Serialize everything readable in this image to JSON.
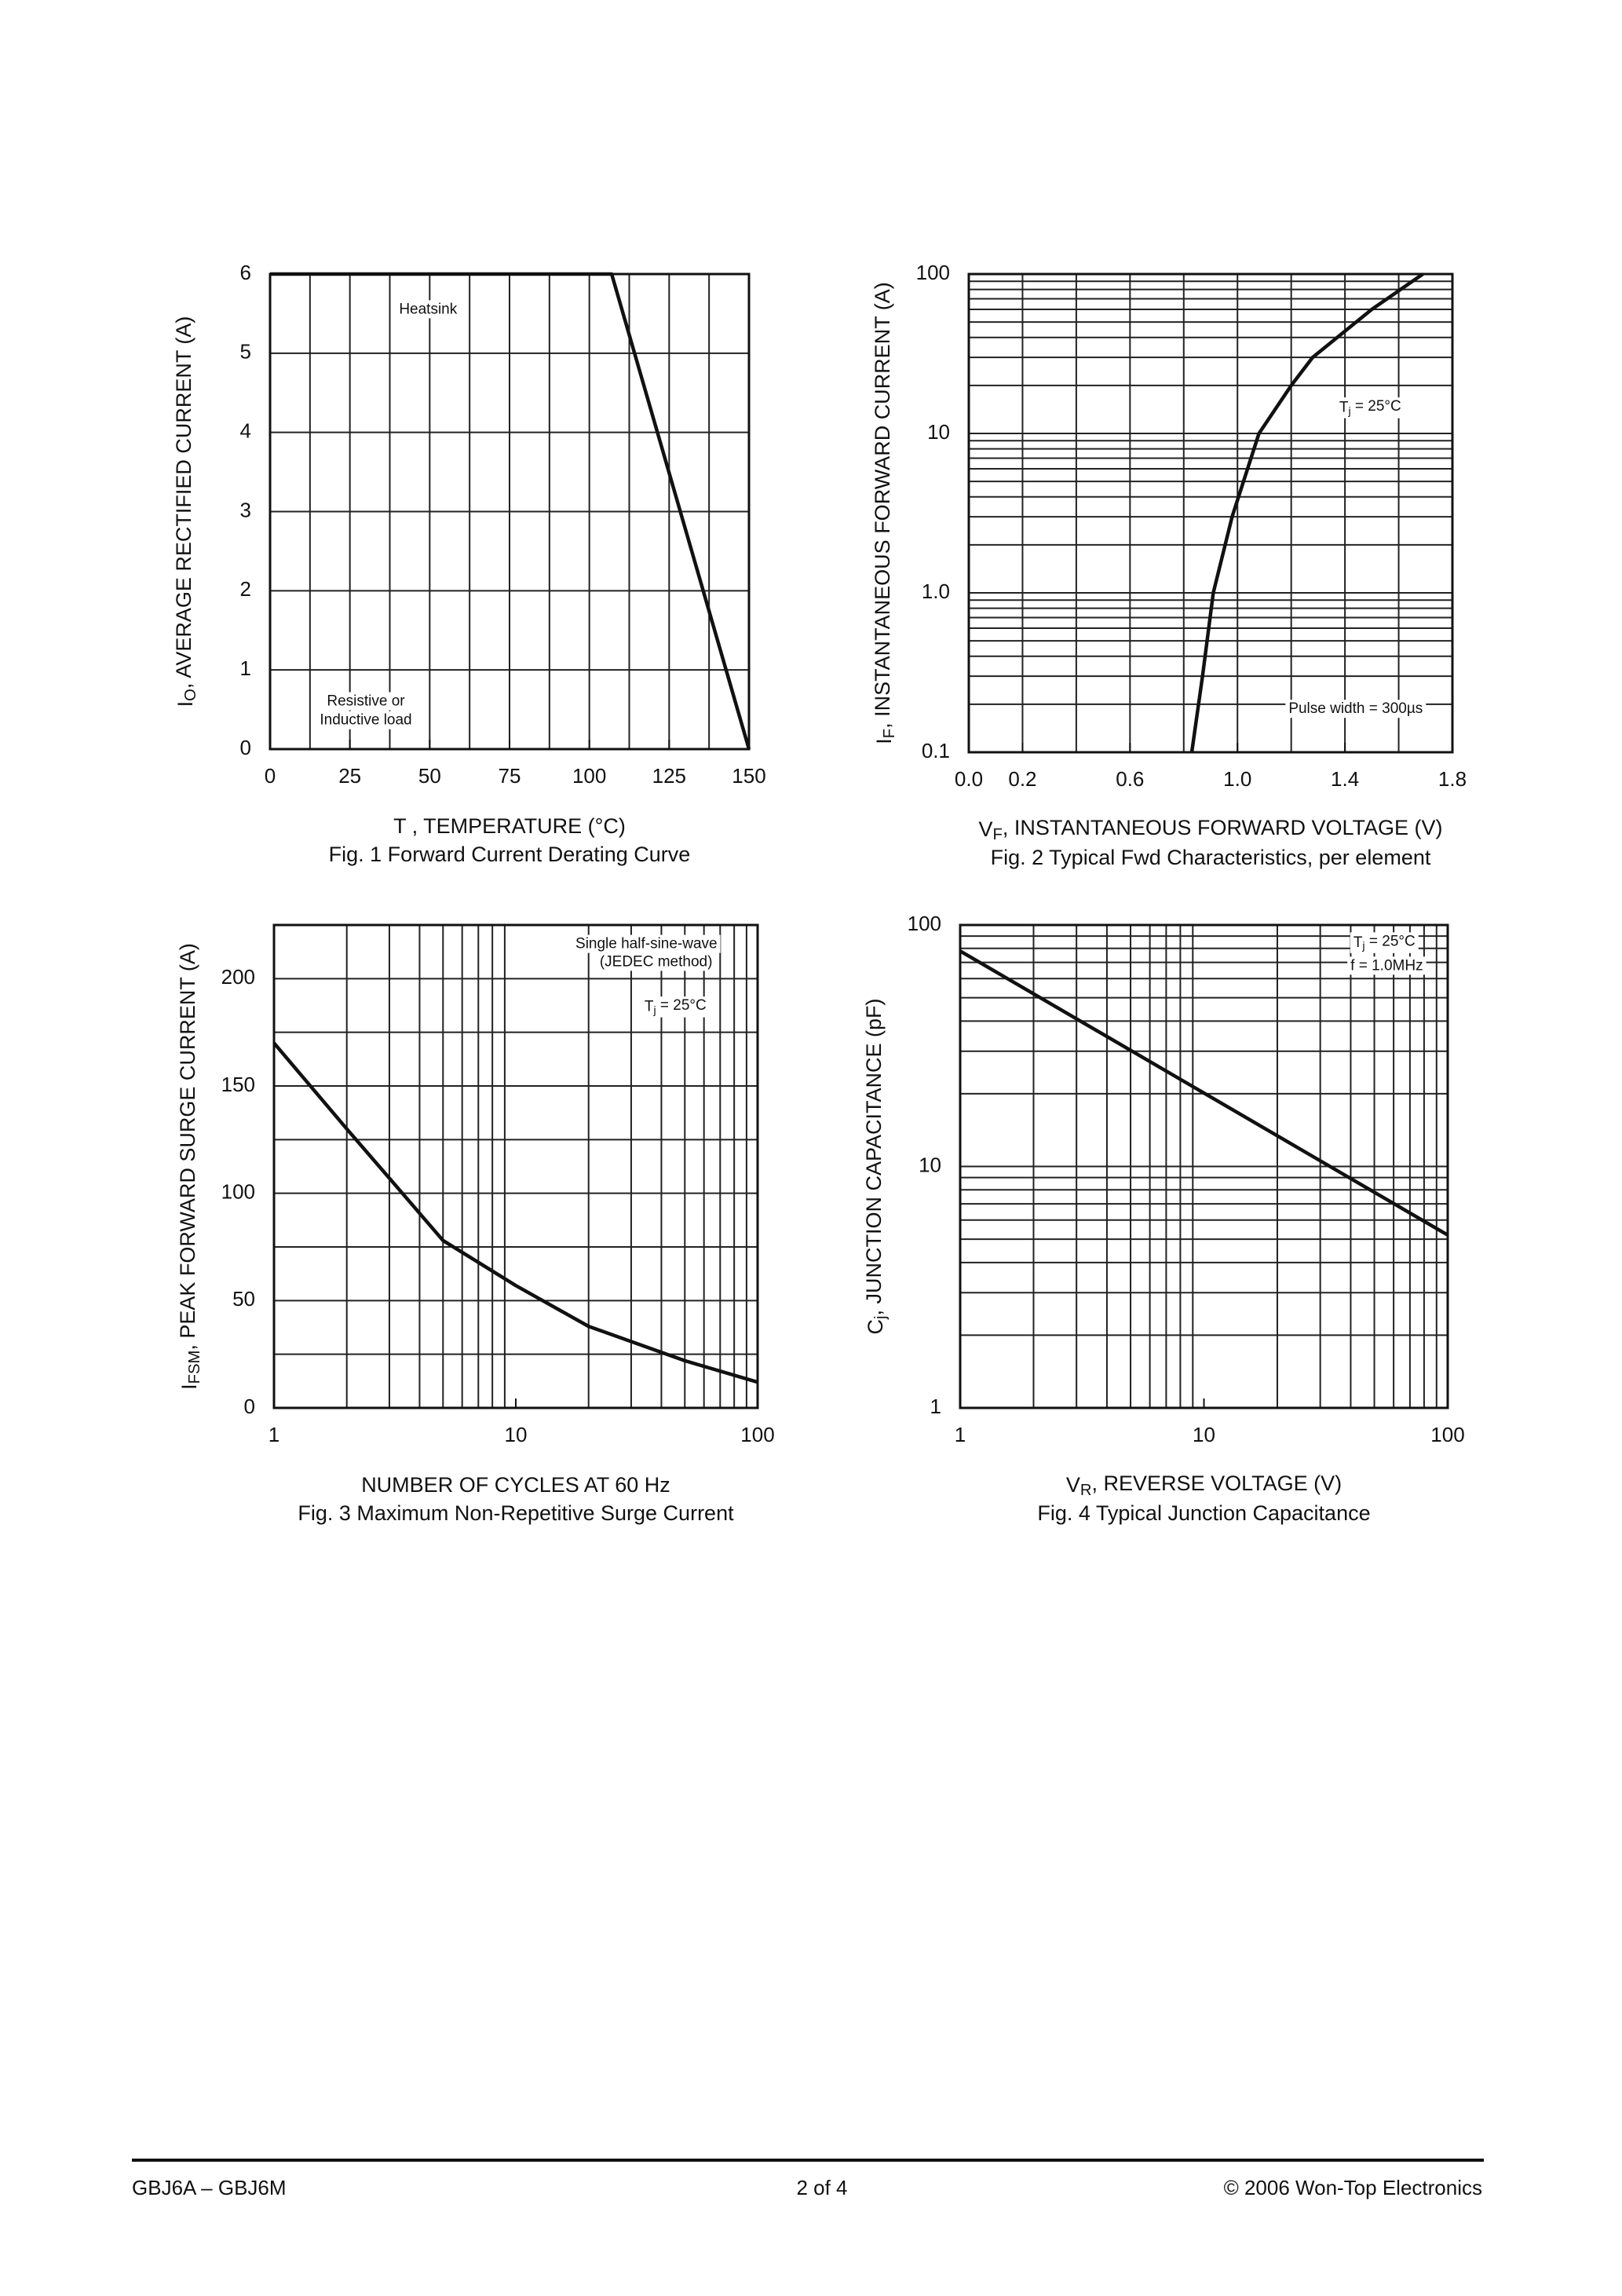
{
  "chart_data": [
    {
      "type": "line",
      "caption": "Fig. 1  Forward Current Derating Curve",
      "xlabel": "T  , TEMPERATURE (°C)",
      "ylabel": [
        "I",
        "O",
        ", AVERAGE RECTIFIED CURRENT (A)"
      ],
      "xlim": [
        0,
        150
      ],
      "xticks": [
        0,
        25,
        50,
        75,
        100,
        125,
        150
      ],
      "xgrid": [
        12.5,
        25,
        37.5,
        50,
        62.5,
        75,
        87.5,
        100,
        112.5,
        125,
        137.5
      ],
      "ylim": [
        0,
        6
      ],
      "yticks": [
        0,
        1,
        2,
        3,
        4,
        5,
        6
      ],
      "ygrid": [],
      "annotations": [
        "Heatsink",
        "Resistive or",
        "Inductive load"
      ],
      "series": [
        {
          "color": "#111111",
          "x": [
            0,
            107,
            150
          ],
          "values": [
            6,
            6,
            0
          ]
        }
      ]
    },
    {
      "type": "line",
      "caption": "Fig. 2  Typical Fwd Characteristics, per element",
      "xlabel": [
        "V",
        "F",
        ", INSTANTANEOUS FORWARD VOLTAGE (V)"
      ],
      "ylabel": [
        "I",
        "F",
        ", INSTANTANEOUS FORWARD CURRENT (A)"
      ],
      "xlim": [
        0,
        1.8
      ],
      "xticks": [
        {
          "value": 0,
          "label": "0.0"
        },
        0.2,
        0.6,
        {
          "value": 1,
          "label": "1.0"
        },
        1.4,
        1.8
      ],
      "xgrid": [
        0.2,
        0.4,
        0.6,
        0.8,
        1,
        1.2,
        1.4,
        1.6
      ],
      "yscale": "log",
      "ylim": [
        0.1,
        100
      ],
      "yticks": [
        0.1,
        {
          "value": 1,
          "label": "1.0"
        },
        10,
        100
      ],
      "ygrid": [
        0.2,
        0.3,
        0.4,
        0.5,
        0.6,
        0.7,
        0.8,
        0.9,
        2,
        3,
        4,
        5,
        6,
        7,
        8,
        9,
        20,
        30,
        40,
        50,
        60,
        70,
        80,
        90
      ],
      "annotations": [
        [
          "T",
          "j",
          " = 25°C"
        ],
        "Pulse width = 300µs"
      ],
      "series": [
        {
          "color": "#111111",
          "x": [
            0.83,
            0.87,
            0.91,
            0.98,
            1.08,
            1.2,
            1.28,
            1.5,
            1.69
          ],
          "values": [
            0.1,
            0.3,
            1,
            3,
            10,
            20,
            30,
            60,
            100
          ]
        }
      ]
    },
    {
      "type": "line",
      "caption": "Fig. 3  Maximum Non-Repetitive Surge Current",
      "xlabel": "NUMBER OF CYCLES AT 60 Hz",
      "ylabel": [
        "I",
        "FSM",
        ", PEAK FORWARD SURGE CURRENT (A)"
      ],
      "xscale": "log",
      "xlim": [
        1,
        100
      ],
      "xticks": [
        1,
        10,
        100
      ],
      "xgrid": [
        2,
        3,
        4,
        5,
        6,
        7,
        8,
        9,
        20,
        30,
        40,
        50,
        60,
        70,
        80,
        90
      ],
      "ylim": [
        0,
        225
      ],
      "yticks": [
        0,
        50,
        100,
        150,
        200
      ],
      "ygrid": [
        25,
        75,
        125,
        175
      ],
      "annotations": [
        "Single half-sine-wave",
        "(JEDEC method)",
        [
          "T",
          "j",
          " = 25°C"
        ]
      ],
      "series": [
        {
          "color": "#111111",
          "x": [
            1,
            2,
            3,
            5,
            10,
            20,
            50,
            100
          ],
          "values": [
            170,
            130,
            107,
            78,
            57,
            38,
            22,
            12
          ]
        }
      ]
    },
    {
      "type": "line",
      "caption": "Fig. 4  Typical Junction Capacitance",
      "xlabel": [
        "V",
        "R",
        ", REVERSE VOLTAGE (V)"
      ],
      "ylabel": [
        "C",
        "j",
        ", JUNCTION CAPACITANCE (pF)"
      ],
      "xscale": "log",
      "xlim": [
        1,
        100
      ],
      "xticks": [
        1,
        10,
        100
      ],
      "xgrid": [
        2,
        3,
        4,
        5,
        6,
        7,
        8,
        9,
        20,
        30,
        40,
        50,
        60,
        70,
        80,
        90
      ],
      "yscale": "log",
      "ylim": [
        1,
        100
      ],
      "yticks": [
        1,
        10,
        100
      ],
      "ygrid": [
        2,
        3,
        4,
        5,
        6,
        7,
        8,
        9,
        20,
        30,
        40,
        50,
        60,
        70,
        80,
        90
      ],
      "annotations": [
        [
          "T",
          "j",
          " = 25°C"
        ],
        "f = 1.0MHz"
      ],
      "series": [
        {
          "color": "#111111",
          "x": [
            1,
            100
          ],
          "values": [
            78,
            5.2
          ]
        }
      ]
    }
  ],
  "footer": {
    "left": "GBJ6A – GBJ6M",
    "center": "2 of 4",
    "right": "© 2006 Won-Top Electronics"
  }
}
